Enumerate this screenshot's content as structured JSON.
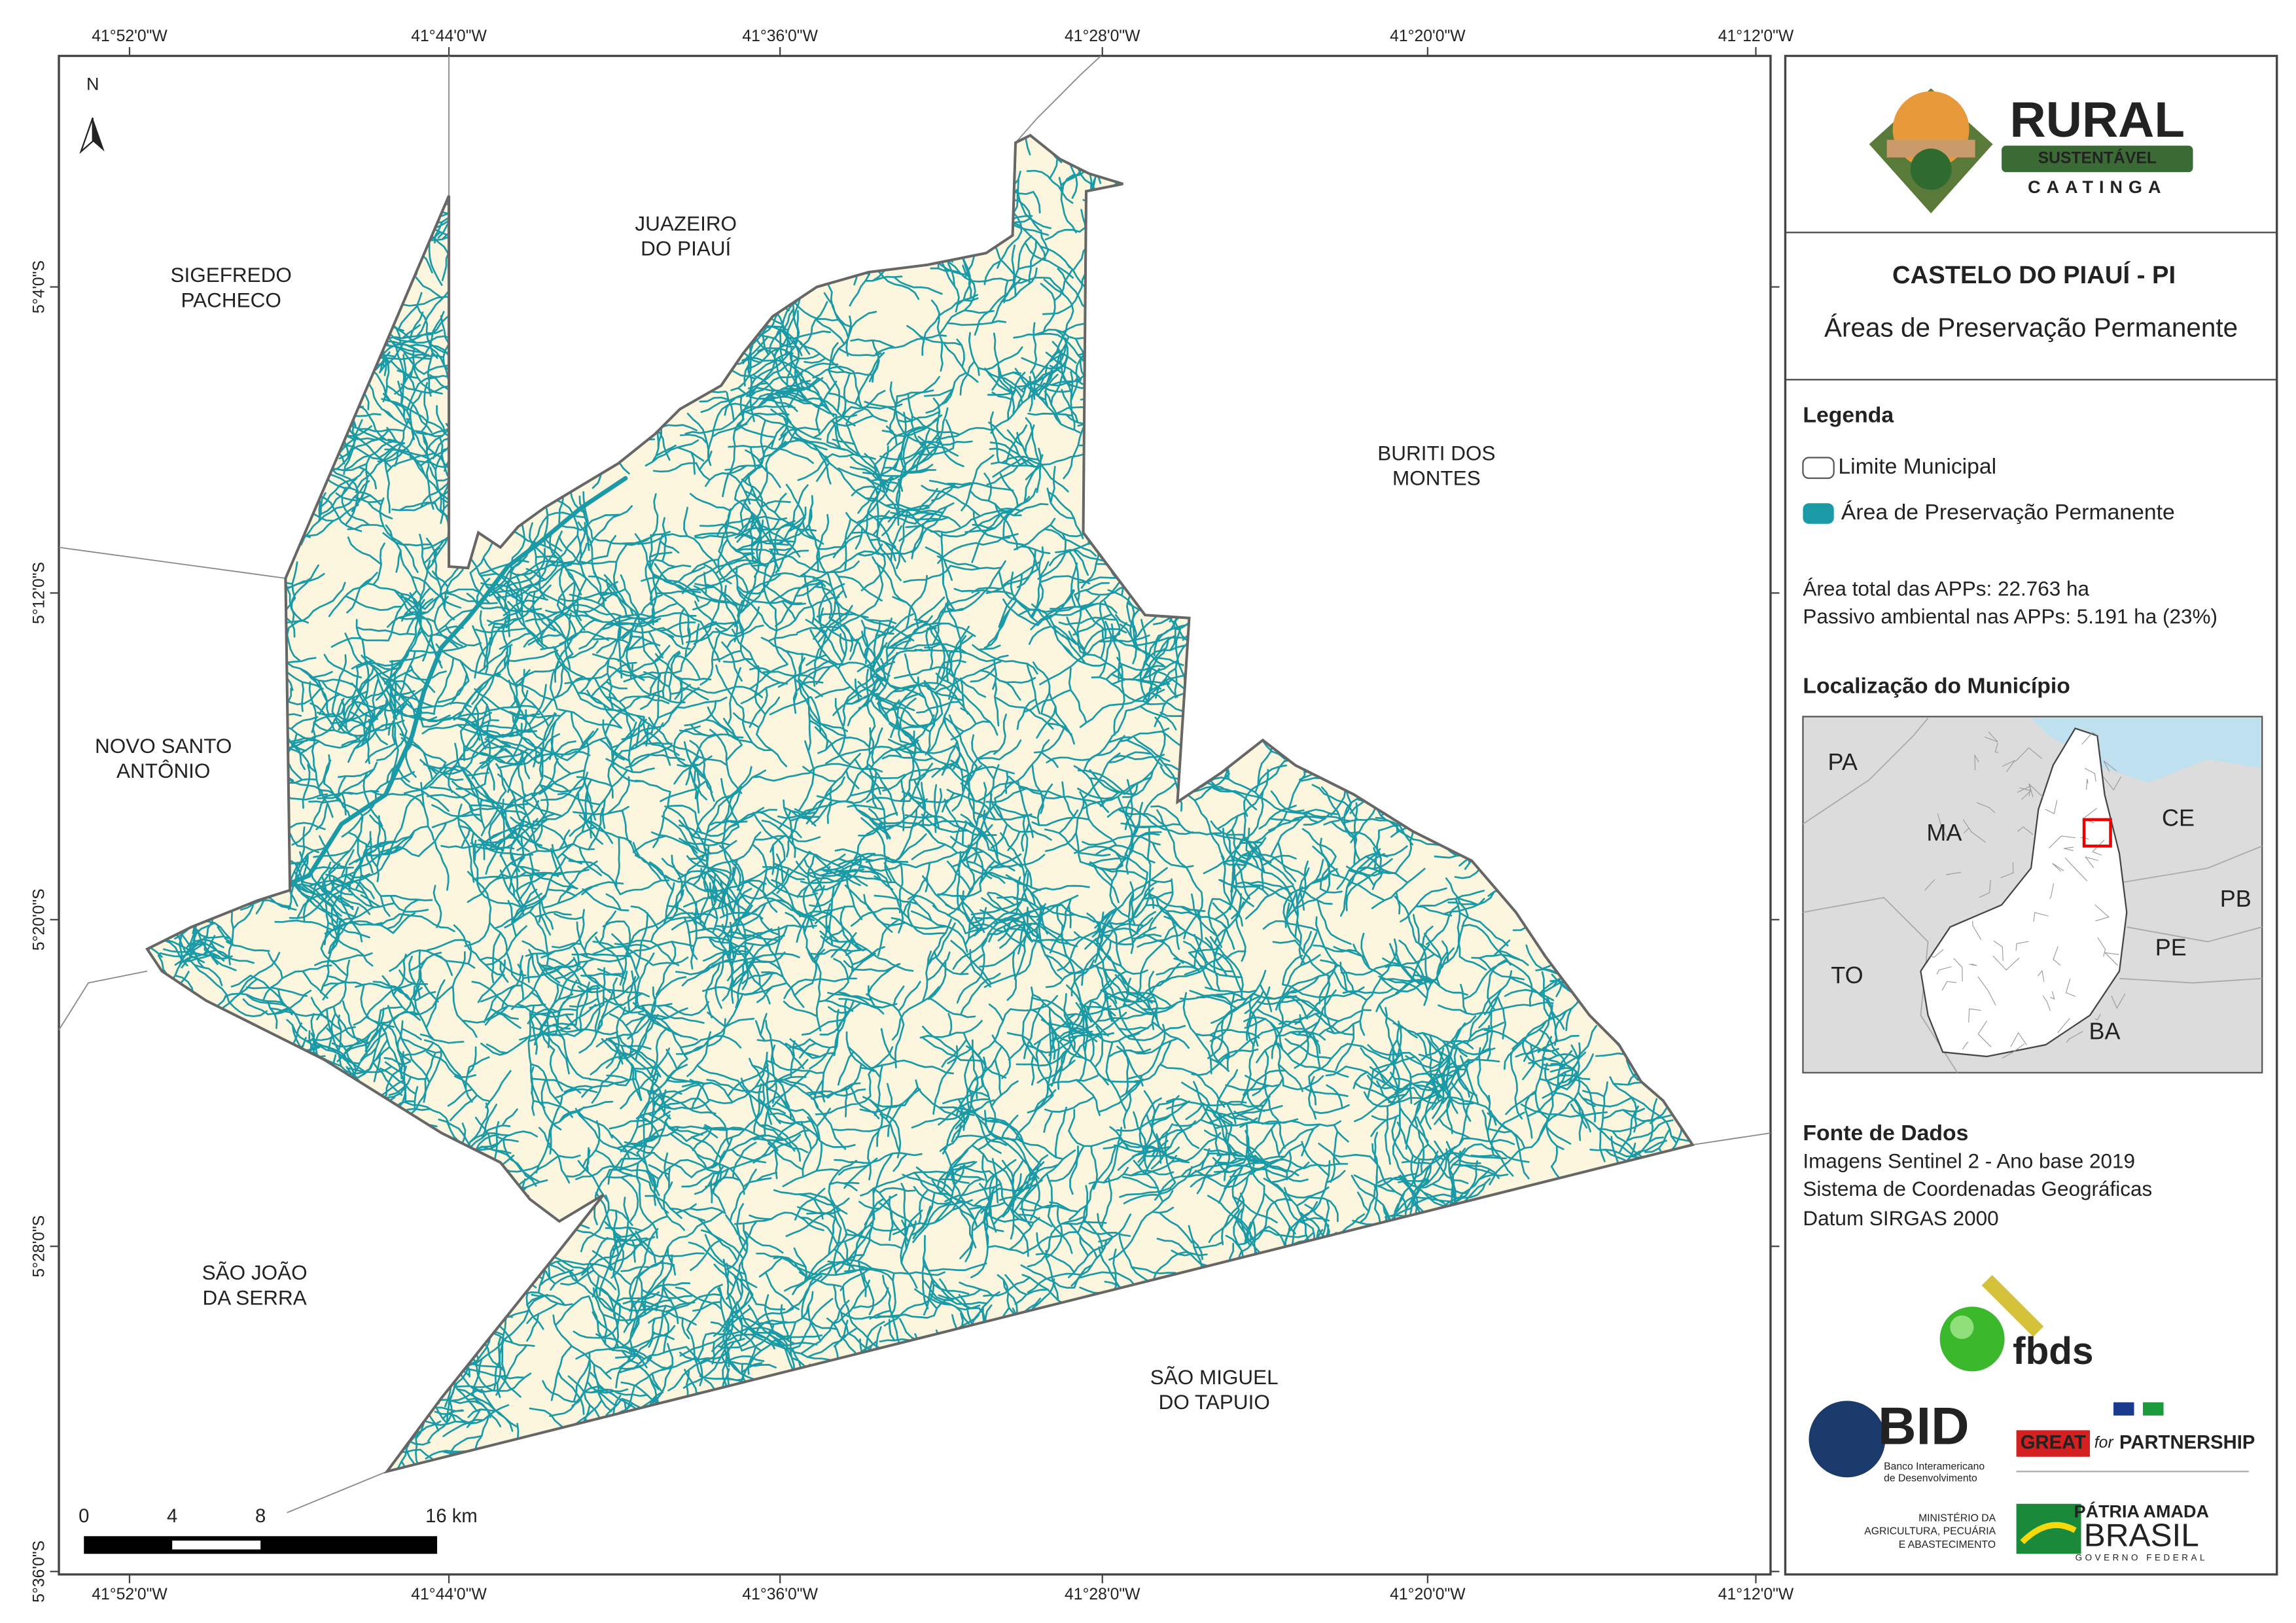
{
  "graticule": {
    "lon": [
      "41°52'0\"W",
      "41°44'0\"W",
      "41°36'0\"W",
      "41°28'0\"W",
      "41°20'0\"W",
      "41°12'0\"W"
    ],
    "lat": [
      "5°4'0\"S",
      "5°12'0\"S",
      "5°20'0\"S",
      "5°28'0\"S",
      "5°36'0\"S"
    ]
  },
  "places": [
    {
      "lines": [
        "SIGEFREDO",
        "PACHECO"
      ]
    },
    {
      "lines": [
        "JUAZEIRO",
        "DO PIAUÍ"
      ]
    },
    {
      "lines": [
        "BURITI DOS",
        "MONTES"
      ]
    },
    {
      "lines": [
        "NOVO SANTO",
        "ANTÔNIO"
      ]
    },
    {
      "lines": [
        "SÃO JOÃO",
        "DA SERRA"
      ]
    },
    {
      "lines": [
        "SÃO MIGUEL",
        "DO TAPUIO"
      ]
    }
  ],
  "north": "N",
  "scale_bar": {
    "labels": [
      "0",
      "4",
      "8",
      "16 km"
    ]
  },
  "logo": {
    "name": "RURAL",
    "sub": "SUSTENTÁVEL",
    "region": "CAATINGA"
  },
  "title": "CASTELO DO PIAUÍ - PI",
  "subtitle": "Áreas de Preservação Permanente",
  "legend": {
    "title": "Legenda",
    "items": [
      "Limite Municipal",
      "Área de Preservação Permanente"
    ]
  },
  "stats": [
    "Área total das APPs: 22.763 ha",
    "Passivo ambiental nas APPs: 5.191 ha (23%)"
  ],
  "location": {
    "title": "Localização do Município",
    "states": [
      "PA",
      "MA",
      "CE",
      "PB",
      "PE",
      "TO",
      "BA"
    ]
  },
  "sources": {
    "title": "Fonte de Dados",
    "lines": [
      "Imagens Sentinel 2 - Ano base 2019",
      "Sistema de Coordenadas Geográficas",
      "Datum SIRGAS 2000"
    ]
  },
  "sponsors": {
    "fbds": "fbds",
    "bid": "BID",
    "bid_name": [
      "Banco Interamericano",
      "de Desenvolvimento"
    ],
    "great": "GREAT",
    "great_for": "for",
    "great_partner": "PARTNERSHIP",
    "ministry": [
      "MINISTÉRIO DA",
      "AGRICULTURA, PECUÁRIA",
      "E ABASTECIMENTO"
    ],
    "brasil_motto": "PÁTRIA AMADA",
    "brasil": "BRASIL",
    "brasil_gov": "GOVERNO FEDERAL"
  }
}
